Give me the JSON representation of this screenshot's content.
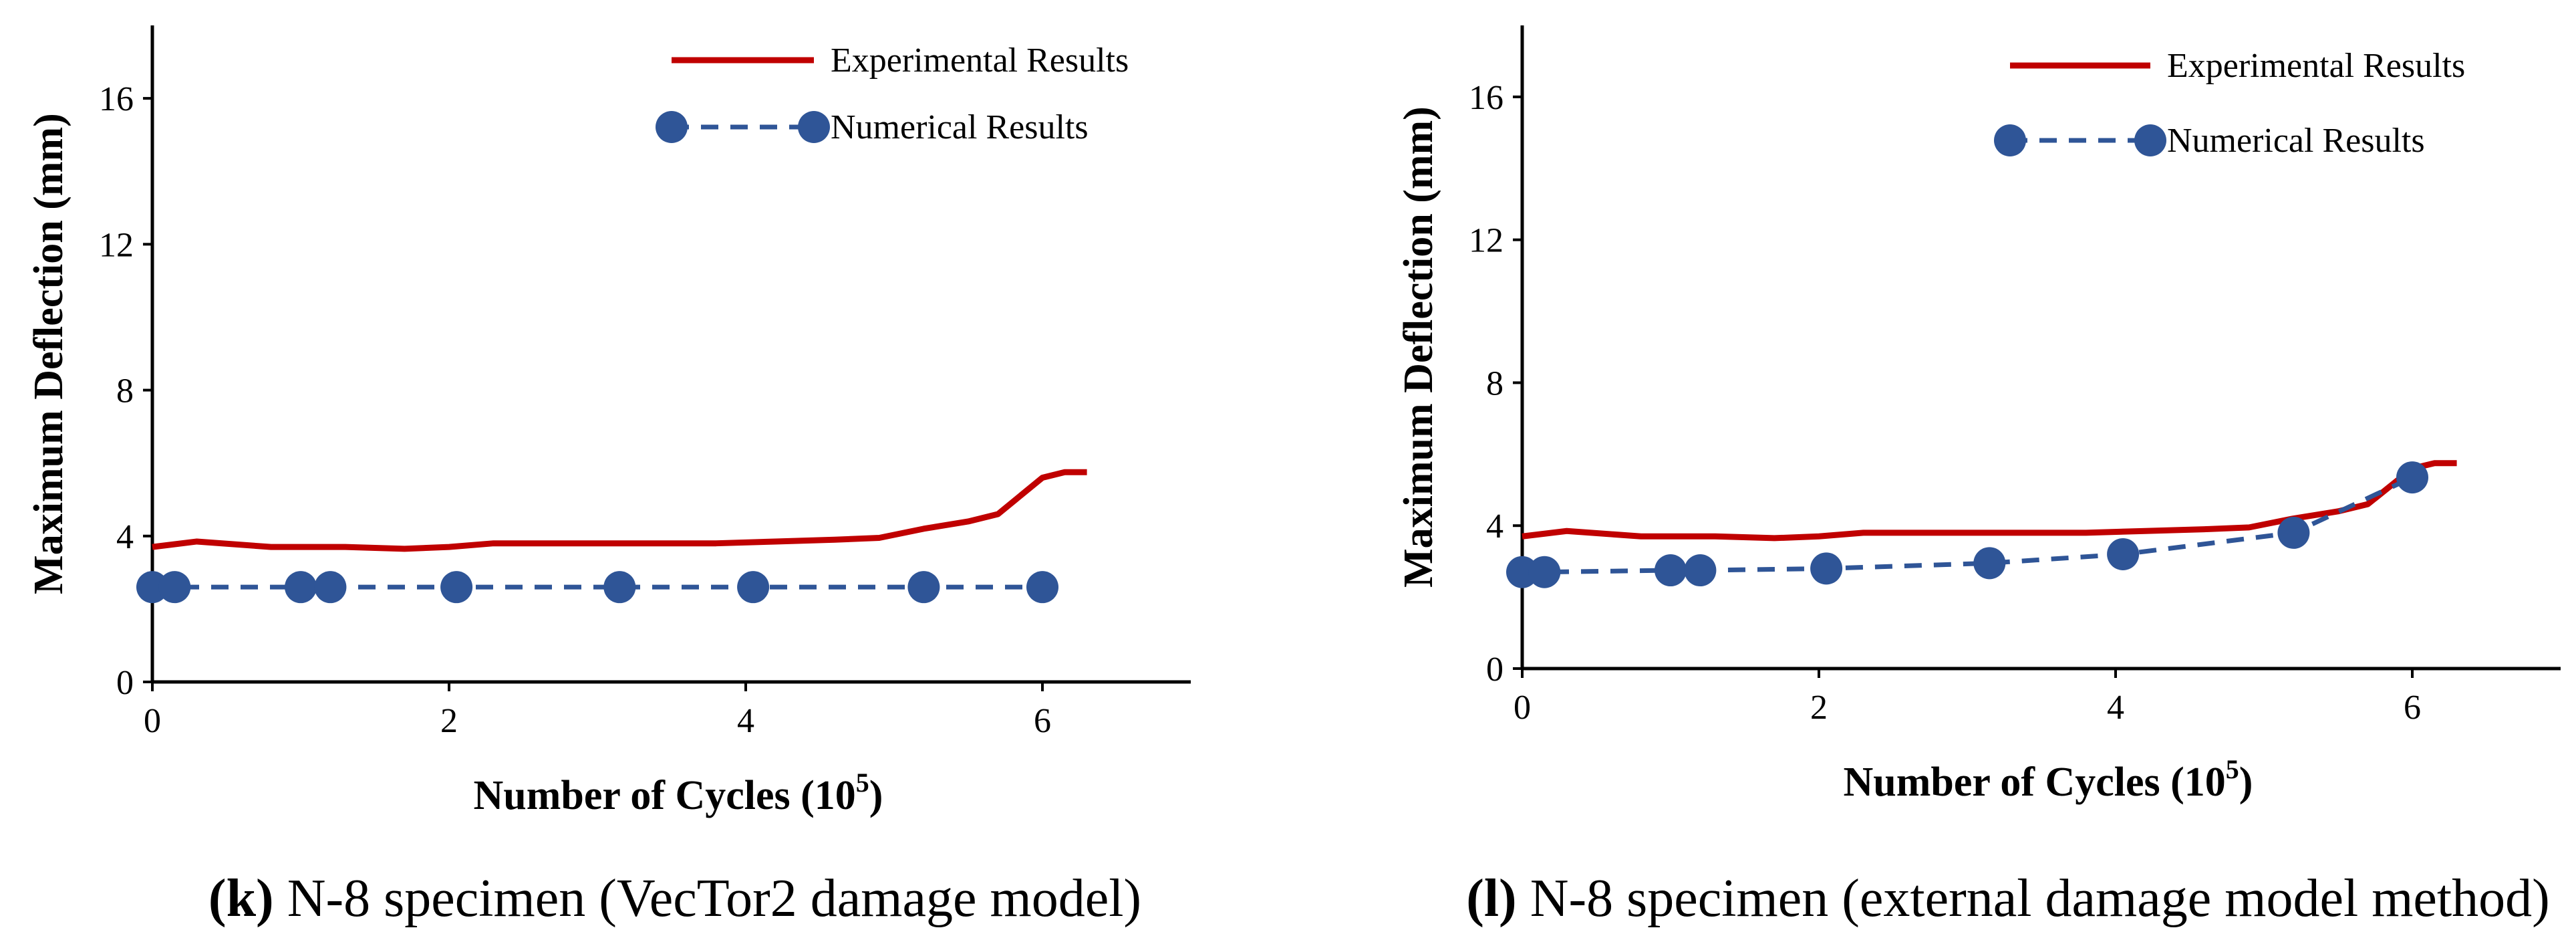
{
  "colors": {
    "experimental": "#C00000",
    "numerical": "#2F5597",
    "axis": "#000000"
  },
  "chart_data": [
    {
      "type": "line",
      "xlabel_main": "Number of Cycles (10",
      "xlabel_sup": "5",
      "xlabel_end": ")",
      "ylabel": "Maximum Deflection (mm)",
      "xlim": [
        0,
        7
      ],
      "ylim": [
        0,
        18
      ],
      "xticks": [
        0,
        2,
        4,
        6
      ],
      "yticks": [
        0,
        4,
        8,
        12,
        16
      ],
      "legend_position": "top-right",
      "caption_letter": "(k)",
      "caption_text": " N-8 specimen (VecTor2 damage model)",
      "series": [
        {
          "name": "Experimental Results",
          "style": "solid",
          "x": [
            0,
            0.3,
            0.8,
            1.3,
            1.7,
            2.0,
            2.3,
            2.8,
            3.3,
            3.8,
            4.2,
            4.6,
            4.9,
            5.2,
            5.5,
            5.7,
            6.0,
            6.15,
            6.3
          ],
          "y": [
            3.7,
            3.85,
            3.7,
            3.7,
            3.65,
            3.7,
            3.8,
            3.8,
            3.8,
            3.8,
            3.85,
            3.9,
            3.95,
            4.2,
            4.4,
            4.6,
            5.6,
            5.75,
            5.75
          ]
        },
        {
          "name": "Numerical Results",
          "style": "dashed-markers",
          "x": [
            0,
            0.15,
            1.0,
            1.2,
            2.05,
            3.15,
            4.05,
            5.2,
            6.0
          ],
          "y": [
            2.6,
            2.6,
            2.6,
            2.6,
            2.6,
            2.6,
            2.6,
            2.6,
            2.6
          ]
        }
      ]
    },
    {
      "type": "line",
      "xlabel_main": "Number of Cycles (10",
      "xlabel_sup": "5",
      "xlabel_end": ")",
      "ylabel": "Maximum Deflection (mm)",
      "xlim": [
        0,
        7
      ],
      "ylim": [
        0,
        18
      ],
      "xticks": [
        0,
        2,
        4,
        6
      ],
      "yticks": [
        0,
        4,
        8,
        12,
        16
      ],
      "legend_position": "top-right",
      "caption_letter": "(l)",
      "caption_text": " N-8 specimen (external damage model method)",
      "series": [
        {
          "name": "Experimental Results",
          "style": "solid",
          "x": [
            0,
            0.3,
            0.8,
            1.3,
            1.7,
            2.0,
            2.3,
            2.8,
            3.3,
            3.8,
            4.2,
            4.6,
            4.9,
            5.2,
            5.5,
            5.7,
            6.0,
            6.15,
            6.3
          ],
          "y": [
            3.7,
            3.85,
            3.7,
            3.7,
            3.65,
            3.7,
            3.8,
            3.8,
            3.8,
            3.8,
            3.85,
            3.9,
            3.95,
            4.2,
            4.4,
            4.6,
            5.6,
            5.75,
            5.75
          ]
        },
        {
          "name": "Numerical Results",
          "style": "dashed-markers",
          "x": [
            0,
            0.15,
            1.0,
            1.2,
            2.05,
            3.15,
            4.05,
            5.2,
            6.0
          ],
          "y": [
            2.7,
            2.7,
            2.75,
            2.75,
            2.8,
            2.95,
            3.2,
            3.8,
            5.35
          ]
        }
      ]
    }
  ]
}
